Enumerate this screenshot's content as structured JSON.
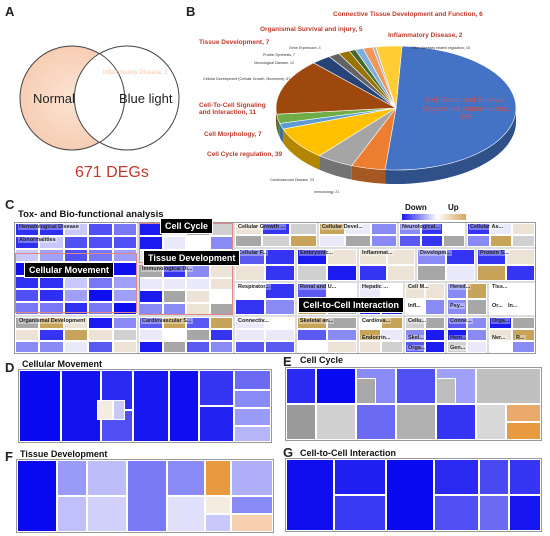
{
  "panels": {
    "a": "A",
    "b": "B",
    "c": "C",
    "d": "D",
    "e": "E",
    "f": "F",
    "g": "G"
  },
  "venn": {
    "left": "Normal",
    "right": "Blue light",
    "overlap_label": "Inflammatory Disease, 2",
    "degs": "671 DEGs"
  },
  "chart_data": {
    "type": "pie",
    "labels": [
      "Cell Death and Survival, Organismal Abnormalities, 233",
      "Immunology, 21",
      "Cardiovascular Disease, 23",
      "Cell Cycle regulation, 39",
      "Cell Morphology, 7",
      "Cell-To-Cell Signaling and Interaction, 11",
      "Cellular Development (Cellular Growth, Movement), 67",
      "Neurological Disease, 12",
      "Protein Synthesis, 7",
      "Tissue Development, 7",
      "Gene Expression, 4",
      "Organismal Survival and injury, 5",
      "Connective Tissue Development and Function, 6",
      "Inflammatory Disease, 2",
      "Other diseases related regulation, 16"
    ],
    "values": [
      233,
      21,
      23,
      39,
      7,
      11,
      67,
      12,
      7,
      7,
      4,
      5,
      6,
      2,
      16
    ],
    "colors": [
      "#4472C4",
      "#ED7D31",
      "#A5A5A5",
      "#FFC000",
      "#5B9BD5",
      "#70AD47",
      "#9E480E",
      "#264478",
      "#636363",
      "#997300",
      "#43682B",
      "#7CAFDD",
      "#F1975A",
      "#B7B7B7",
      "#FFCD33"
    ]
  },
  "treemap_c": {
    "title": "Tox- and Bio-functional analysis",
    "legend_down": "Down",
    "legend_up": "Up",
    "cells": [
      "Hematological Disease",
      "Abnormalities",
      "Cellular Growth ...",
      "Cellular Devel...",
      "Neurological...",
      "Cellular As...",
      "Cellular F...",
      "Embryonic...",
      "Inflammat...",
      "Developm...",
      "Protein S...",
      "Immunological Di...",
      "Respirator...",
      "Renal and U...",
      "Hepatic ...",
      "Cell M...",
      "Hered...",
      "Tiss...",
      "Organismal Development",
      "Cardiovascular S...",
      "Connectiv...",
      "Skeletal an...",
      "Cardiova...",
      "Cellu...",
      "Conne...",
      "Orga...",
      "Infl...",
      "Psy...",
      "Or...",
      "In...",
      "Endocrin...",
      "Skel...",
      "Hem...",
      "Ner...",
      "R...",
      "Orga...",
      "Gen..."
    ],
    "tags": {
      "cell_cycle": "Cell Cycle",
      "tissue_dev": "Tissue Development",
      "cell_movement": "Cellular Movement",
      "cell_cell": "Cell-to-Cell Interaction"
    }
  },
  "sections": {
    "d": "Cellular Movement",
    "e": "Cell Cycle",
    "f": "Tissue Development",
    "g": "Cell-to-Cell Interaction"
  }
}
